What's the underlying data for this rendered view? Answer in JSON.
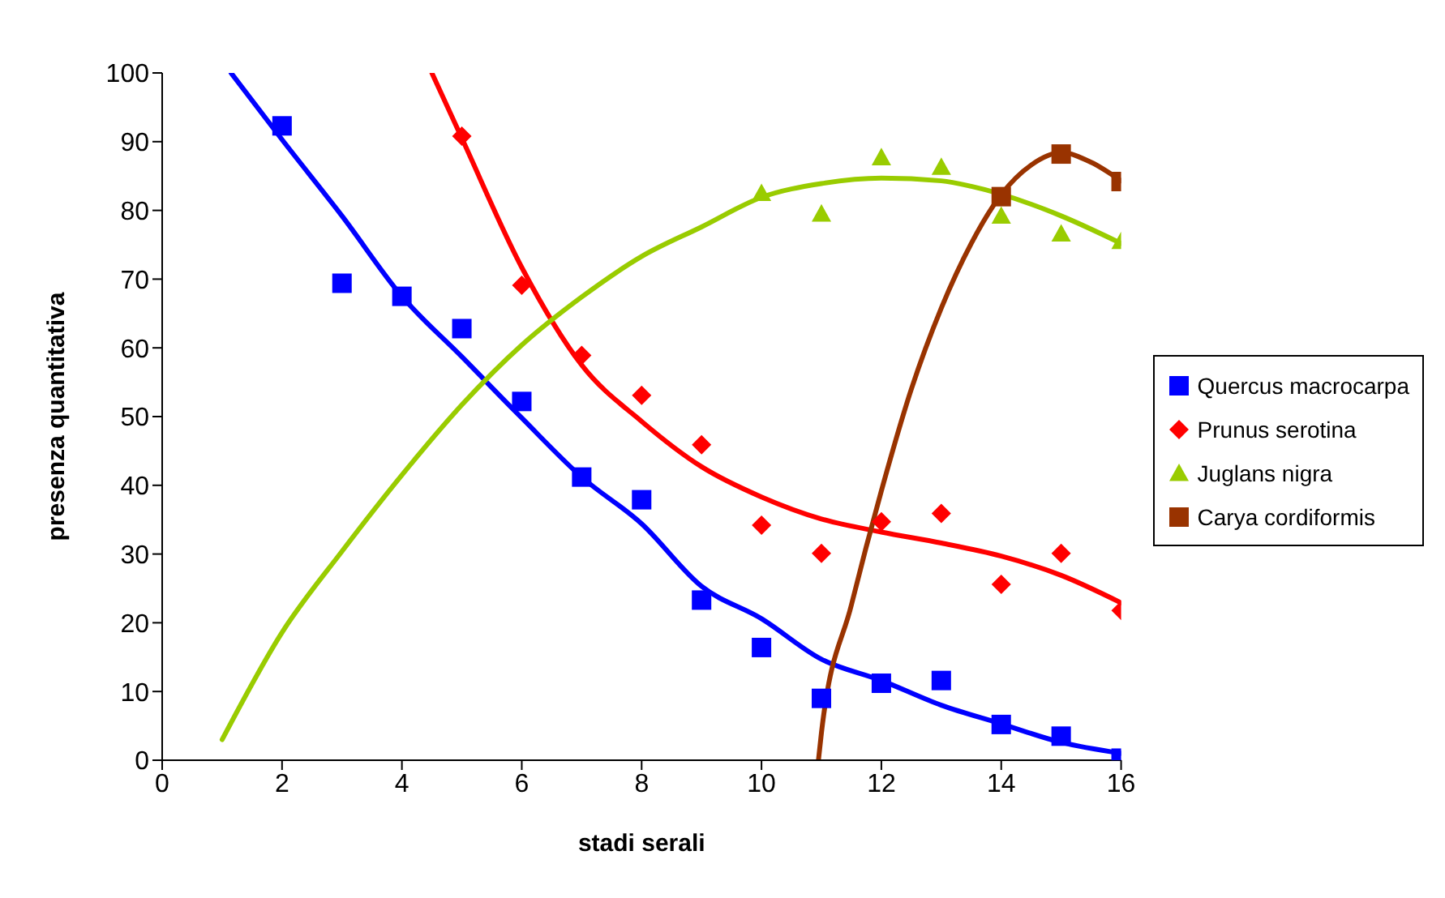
{
  "chart_data": {
    "type": "scatter",
    "xlabel": "stadi serali",
    "ylabel": "presenza quantitativa",
    "xlim": [
      0,
      16
    ],
    "xticks": [
      0,
      2,
      4,
      6,
      8,
      10,
      12,
      14,
      16
    ],
    "ylim": [
      0,
      100
    ],
    "yticks": [
      0,
      10,
      20,
      30,
      40,
      50,
      60,
      70,
      80,
      90,
      100
    ],
    "grid": false,
    "legend": "right",
    "series": [
      {
        "name": "Quercus macrocarpa",
        "color": "#0000ff",
        "marker": "square",
        "x": [
          2,
          3,
          4,
          5,
          6,
          7,
          8,
          9,
          10,
          11,
          12,
          13,
          14,
          15,
          16
        ],
        "values": [
          92.3,
          69.4,
          67.5,
          62.8,
          52.2,
          41.2,
          37.9,
          23.3,
          16.4,
          9,
          11.2,
          11.6,
          5.2,
          3.5,
          0.3
        ]
      },
      {
        "name": "Prunus serotina",
        "color": "#ff0000",
        "marker": "diamond",
        "x": [
          5,
          6,
          7,
          8,
          9,
          10,
          11,
          12,
          13,
          14,
          15,
          16
        ],
        "values": [
          90.8,
          69.1,
          58.9,
          53.1,
          45.9,
          34.2,
          30.1,
          34.7,
          35.9,
          25.6,
          30.1,
          21.8
        ]
      },
      {
        "name": "Juglans nigra",
        "color": "#99cc00",
        "marker": "triangle",
        "x": [
          10,
          11,
          12,
          13,
          14,
          15,
          16
        ],
        "values": [
          82.5,
          79.5,
          87.7,
          86.3,
          79.2,
          76.6,
          75.5
        ]
      },
      {
        "name": "Carya cordiformis",
        "color": "#993300",
        "marker": "square",
        "x": [
          14,
          15,
          16
        ],
        "values": [
          82,
          88.2,
          84.2
        ]
      },
      {
        "type": "line",
        "color": "#0000ff",
        "marker": "none",
        "line_style": "solid",
        "x": [
          1.15,
          2,
          3,
          4,
          5,
          6,
          7,
          8,
          9,
          10,
          11,
          12,
          13,
          14,
          15,
          16
        ],
        "values": [
          100,
          90.3,
          79.2,
          67.5,
          58.7,
          49.8,
          41.2,
          34.4,
          25.3,
          20.6,
          14.7,
          11.6,
          8,
          5.3,
          2.6,
          1
        ]
      },
      {
        "type": "line",
        "color": "#ff0000",
        "marker": "none",
        "line_style": "solid",
        "x": [
          4.5,
          5,
          6,
          7,
          8,
          9,
          10,
          11,
          12,
          13,
          14,
          15,
          16
        ],
        "values": [
          100,
          90.5,
          71.7,
          57.5,
          49.3,
          42.7,
          38.3,
          35.1,
          33.2,
          31.6,
          29.7,
          26.9,
          22.9
        ]
      },
      {
        "type": "line",
        "color": "#99cc00",
        "marker": "none",
        "line_style": "solid",
        "x": [
          1,
          2,
          3,
          4,
          5,
          6,
          7,
          8,
          9,
          10,
          11,
          12,
          13,
          13.5,
          14.5,
          15,
          16
        ],
        "values": [
          3,
          18.6,
          30.4,
          41.5,
          51.7,
          60.4,
          67.4,
          73.3,
          77.6,
          81.9,
          83.9,
          84.7,
          84.3,
          83.5,
          80.9,
          79.2,
          75.2
        ]
      },
      {
        "type": "line",
        "color": "#993300",
        "marker": "none",
        "line_style": "solid",
        "x": [
          10.95,
          11,
          11.5,
          12,
          12.5,
          13,
          13.5,
          14,
          14.5,
          15,
          15.5,
          16
        ],
        "values": [
          0,
          4,
          22.6,
          39.2,
          54,
          65.8,
          75.2,
          82.3,
          86.6,
          88.4,
          87,
          84.3
        ]
      }
    ]
  }
}
